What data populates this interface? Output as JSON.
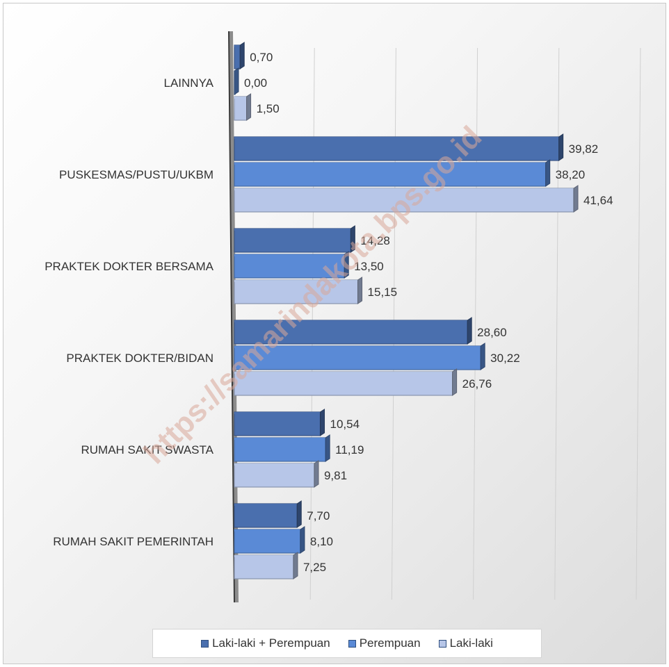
{
  "watermark": "https://samarindakota.bps.go.id",
  "chart_data": {
    "type": "bar",
    "orientation": "horizontal",
    "categories": [
      "LAINNYA",
      "PUSKESMAS/PUSTU/UKBM",
      "PRAKTEK DOKTER BERSAMA",
      "PRAKTEK DOKTER/BIDAN",
      "RUMAH SAKIT SWASTA",
      "RUMAH SAKIT PEMERINTAH"
    ],
    "series": [
      {
        "name": "Laki-laki + Perempuan",
        "values": [
          0.7,
          39.82,
          14.28,
          28.6,
          10.54,
          7.7
        ],
        "labels": [
          "0,70",
          "39,82",
          "14,28",
          "28,60",
          "10,54",
          "7,70"
        ],
        "color": "#4a6fae"
      },
      {
        "name": "Perempuan",
        "values": [
          0.0,
          38.2,
          13.5,
          30.22,
          11.19,
          8.1
        ],
        "labels": [
          "0,00",
          "38,20",
          "13,50",
          "30,22",
          "11,19",
          "8,10"
        ],
        "color": "#5a8ad6"
      },
      {
        "name": "Laki-laki",
        "values": [
          1.5,
          41.64,
          15.15,
          26.76,
          9.81,
          7.25
        ],
        "labels": [
          "1,50",
          "41,64",
          "15,15",
          "26,76",
          "9,81",
          "7,25"
        ],
        "color": "#b7c6e8"
      }
    ],
    "xlim": [
      0,
      50
    ],
    "grid": true,
    "legend_position": "bottom",
    "style": "3d-bar"
  }
}
